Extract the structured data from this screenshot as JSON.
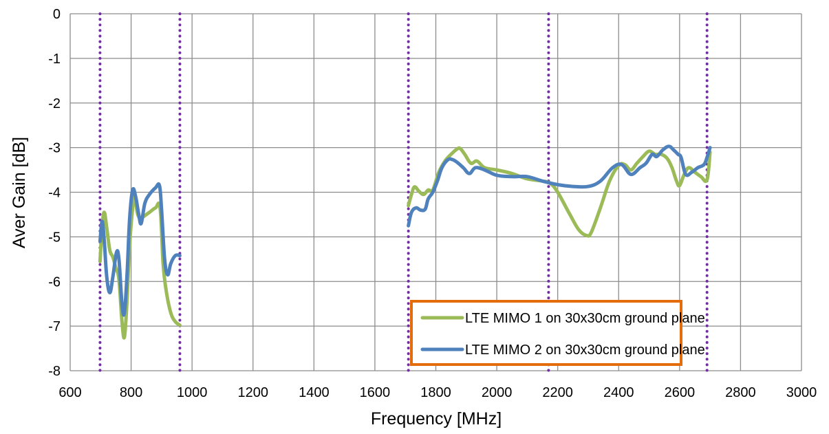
{
  "chart_data": {
    "type": "line",
    "xlabel": "Frequency [MHz]",
    "ylabel": "Aver Gain [dB]",
    "xlim": [
      600,
      3000
    ],
    "ylim": [
      -8,
      0
    ],
    "xticks": [
      600,
      800,
      1000,
      1200,
      1400,
      1600,
      1800,
      2000,
      2200,
      2400,
      2600,
      2800,
      3000
    ],
    "yticks": [
      0,
      -1,
      -2,
      -3,
      -4,
      -5,
      -6,
      -7,
      -8
    ],
    "grid": true,
    "legend_position": "bottom-right",
    "band_markers": [
      698,
      960,
      1710,
      2170,
      2690
    ],
    "band_marker_color": "#7030A0",
    "legend_border_color": "#E46C0A",
    "series": [
      {
        "name": "LTE MIMO 1 on 30x30cm ground plane",
        "color": "#9BBB59",
        "segments": [
          [
            [
              698,
              -5.55
            ],
            [
              705,
              -4.75
            ],
            [
              712,
              -4.45
            ],
            [
              720,
              -4.8
            ],
            [
              730,
              -5.3
            ],
            [
              740,
              -5.45
            ],
            [
              750,
              -5.7
            ],
            [
              760,
              -5.95
            ],
            [
              770,
              -6.9
            ],
            [
              778,
              -7.25
            ],
            [
              786,
              -6.5
            ],
            [
              795,
              -5.2
            ],
            [
              805,
              -4.35
            ],
            [
              812,
              -4.05
            ],
            [
              820,
              -4.45
            ],
            [
              830,
              -4.6
            ],
            [
              840,
              -4.55
            ],
            [
              860,
              -4.45
            ],
            [
              880,
              -4.35
            ],
            [
              895,
              -4.35
            ],
            [
              905,
              -5.6
            ],
            [
              915,
              -6.2
            ],
            [
              930,
              -6.7
            ],
            [
              945,
              -6.9
            ],
            [
              960,
              -6.98
            ]
          ],
          [
            [
              1710,
              -4.3
            ],
            [
              1720,
              -4.05
            ],
            [
              1730,
              -3.88
            ],
            [
              1745,
              -3.98
            ],
            [
              1760,
              -4.05
            ],
            [
              1775,
              -3.95
            ],
            [
              1790,
              -3.95
            ],
            [
              1810,
              -3.55
            ],
            [
              1830,
              -3.3
            ],
            [
              1850,
              -3.15
            ],
            [
              1870,
              -3.03
            ],
            [
              1880,
              -3.02
            ],
            [
              1895,
              -3.15
            ],
            [
              1915,
              -3.35
            ],
            [
              1935,
              -3.3
            ],
            [
              1960,
              -3.45
            ],
            [
              2000,
              -3.5
            ],
            [
              2050,
              -3.58
            ],
            [
              2100,
              -3.7
            ],
            [
              2150,
              -3.75
            ],
            [
              2175,
              -3.8
            ],
            [
              2200,
              -4.0
            ],
            [
              2240,
              -4.5
            ],
            [
              2270,
              -4.85
            ],
            [
              2295,
              -4.97
            ],
            [
              2310,
              -4.9
            ],
            [
              2340,
              -4.35
            ],
            [
              2370,
              -3.75
            ],
            [
              2400,
              -3.4
            ],
            [
              2420,
              -3.38
            ],
            [
              2440,
              -3.5
            ],
            [
              2460,
              -3.35
            ],
            [
              2480,
              -3.2
            ],
            [
              2500,
              -3.08
            ],
            [
              2520,
              -3.15
            ],
            [
              2540,
              -3.15
            ],
            [
              2560,
              -3.25
            ],
            [
              2575,
              -3.45
            ],
            [
              2590,
              -3.75
            ],
            [
              2600,
              -3.85
            ],
            [
              2615,
              -3.6
            ],
            [
              2630,
              -3.45
            ],
            [
              2650,
              -3.55
            ],
            [
              2670,
              -3.65
            ],
            [
              2690,
              -3.72
            ],
            [
              2700,
              -3.1
            ]
          ]
        ]
      },
      {
        "name": "LTE MIMO 2 on 30x30cm ground plane",
        "color": "#4F81BD",
        "segments": [
          [
            [
              698,
              -5.1
            ],
            [
              705,
              -4.65
            ],
            [
              712,
              -5.1
            ],
            [
              720,
              -5.9
            ],
            [
              730,
              -6.25
            ],
            [
              740,
              -5.9
            ],
            [
              752,
              -5.35
            ],
            [
              760,
              -5.5
            ],
            [
              770,
              -6.5
            ],
            [
              778,
              -6.7
            ],
            [
              787,
              -5.8
            ],
            [
              795,
              -4.6
            ],
            [
              805,
              -3.95
            ],
            [
              815,
              -4.1
            ],
            [
              825,
              -4.5
            ],
            [
              833,
              -4.7
            ],
            [
              845,
              -4.25
            ],
            [
              860,
              -4.05
            ],
            [
              880,
              -3.9
            ],
            [
              893,
              -3.85
            ],
            [
              900,
              -4.4
            ],
            [
              910,
              -5.5
            ],
            [
              920,
              -5.85
            ],
            [
              930,
              -5.6
            ],
            [
              945,
              -5.42
            ],
            [
              960,
              -5.42
            ]
          ],
          [
            [
              1710,
              -4.75
            ],
            [
              1720,
              -4.45
            ],
            [
              1735,
              -4.35
            ],
            [
              1750,
              -4.4
            ],
            [
              1765,
              -4.38
            ],
            [
              1775,
              -4.15
            ],
            [
              1790,
              -4.0
            ],
            [
              1805,
              -3.75
            ],
            [
              1820,
              -3.45
            ],
            [
              1840,
              -3.27
            ],
            [
              1855,
              -3.27
            ],
            [
              1870,
              -3.33
            ],
            [
              1890,
              -3.45
            ],
            [
              1910,
              -3.58
            ],
            [
              1930,
              -3.45
            ],
            [
              1960,
              -3.5
            ],
            [
              2000,
              -3.62
            ],
            [
              2050,
              -3.65
            ],
            [
              2100,
              -3.65
            ],
            [
              2150,
              -3.75
            ],
            [
              2200,
              -3.83
            ],
            [
              2250,
              -3.87
            ],
            [
              2300,
              -3.87
            ],
            [
              2340,
              -3.75
            ],
            [
              2380,
              -3.45
            ],
            [
              2410,
              -3.38
            ],
            [
              2440,
              -3.6
            ],
            [
              2470,
              -3.45
            ],
            [
              2490,
              -3.35
            ],
            [
              2510,
              -3.15
            ],
            [
              2525,
              -3.2
            ],
            [
              2545,
              -3.05
            ],
            [
              2565,
              -2.97
            ],
            [
              2580,
              -3.05
            ],
            [
              2595,
              -3.15
            ],
            [
              2605,
              -3.22
            ],
            [
              2620,
              -3.6
            ],
            [
              2640,
              -3.55
            ],
            [
              2660,
              -3.45
            ],
            [
              2680,
              -3.38
            ],
            [
              2690,
              -3.22
            ],
            [
              2700,
              -3.0
            ]
          ]
        ]
      }
    ]
  }
}
